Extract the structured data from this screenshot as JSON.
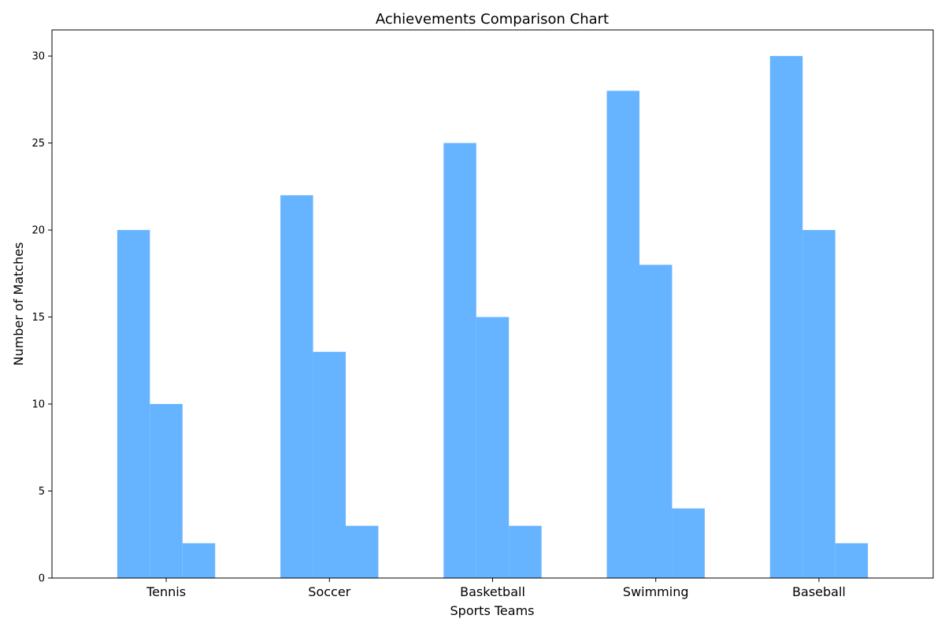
{
  "chart_data": {
    "type": "bar",
    "title": "Achievements Comparison Chart",
    "xlabel": "Sports Teams",
    "ylabel": "Number of Matches",
    "categories": [
      "Tennis",
      "Soccer",
      "Basketball",
      "Swimming",
      "Baseball"
    ],
    "series": [
      {
        "values": [
          20,
          22,
          25,
          28,
          30
        ]
      },
      {
        "values": [
          10,
          13,
          15,
          18,
          20
        ]
      },
      {
        "values": [
          2,
          3,
          3,
          4,
          2
        ]
      }
    ],
    "ylim": [
      0,
      31.5
    ],
    "yticks": [
      0,
      5,
      10,
      15,
      20,
      25,
      30
    ],
    "bar_color": "#66b3ff",
    "grid": false,
    "legend": "none"
  }
}
